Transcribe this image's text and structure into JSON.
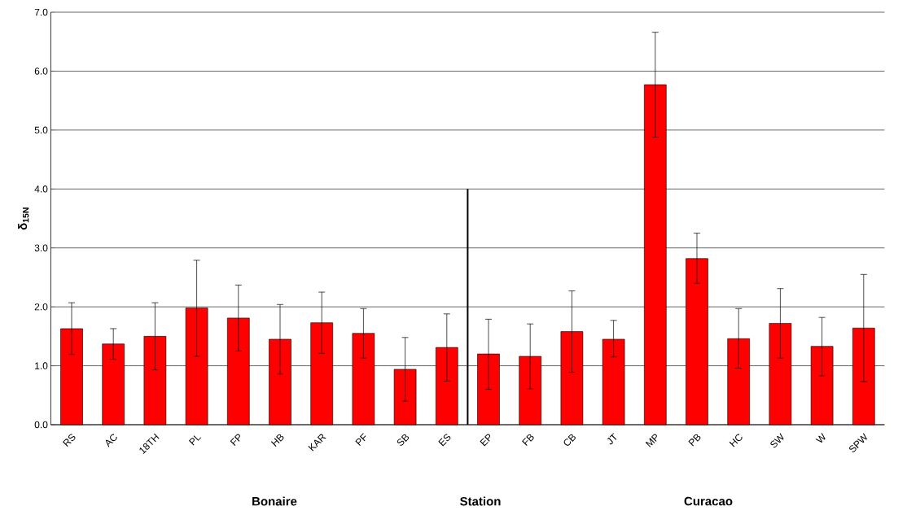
{
  "chart_data": {
    "type": "bar",
    "ylabel": "δ$_{15N}$",
    "categories": [
      "RS",
      "AC",
      "18TH",
      "PL",
      "FP",
      "HB",
      "KAR",
      "PF",
      "SB",
      "ES",
      "EP",
      "FB",
      "CB",
      "JT",
      "MP",
      "PB",
      "HC",
      "SW",
      "W",
      "SPW"
    ],
    "values": [
      1.63,
      1.37,
      1.5,
      1.98,
      1.81,
      1.45,
      1.73,
      1.55,
      0.94,
      1.31,
      1.2,
      1.16,
      1.58,
      1.45,
      5.77,
      2.82,
      1.46,
      1.72,
      1.33,
      1.64
    ],
    "errors": [
      [
        1.19,
        2.07
      ],
      [
        1.11,
        1.63
      ],
      [
        0.93,
        2.07
      ],
      [
        1.16,
        2.79
      ],
      [
        1.25,
        2.37
      ],
      [
        0.86,
        2.04
      ],
      [
        1.21,
        2.25
      ],
      [
        1.13,
        1.97
      ],
      [
        0.4,
        1.48
      ],
      [
        0.74,
        1.88
      ],
      [
        0.6,
        1.79
      ],
      [
        0.61,
        1.71
      ],
      [
        0.89,
        2.27
      ],
      [
        1.15,
        1.77
      ],
      [
        4.88,
        6.66
      ],
      [
        2.4,
        3.25
      ],
      [
        0.96,
        1.97
      ],
      [
        1.13,
        2.31
      ],
      [
        0.83,
        1.82
      ],
      [
        0.73,
        2.55
      ]
    ],
    "color": "#ff0000",
    "ylim": [
      0,
      7
    ],
    "yticks": [
      {
        "value": 0,
        "label": "0.0"
      },
      {
        "value": 1,
        "label": "1.0"
      },
      {
        "value": 2,
        "label": "2.0"
      },
      {
        "value": 3,
        "label": "3.0"
      },
      {
        "value": 4,
        "label": "4.0"
      },
      {
        "value": 5,
        "label": "5.0"
      },
      {
        "value": 6,
        "label": "6.0"
      },
      {
        "value": 7,
        "label": "7.0"
      }
    ],
    "grid": "y",
    "annotations": [
      "Bonaire",
      "Station",
      "Curacao"
    ]
  }
}
